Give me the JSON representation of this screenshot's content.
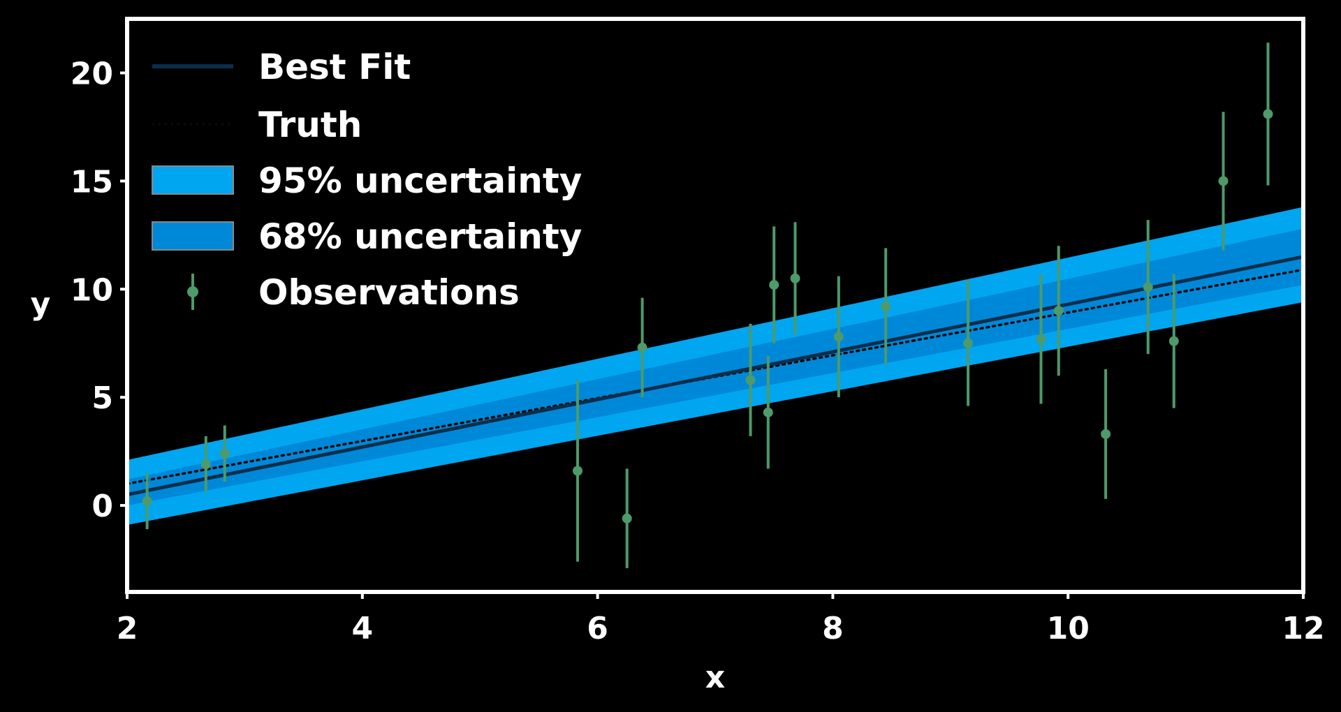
{
  "chart_data": {
    "type": "line",
    "xlabel": "x",
    "ylabel": "y",
    "xlim": [
      2,
      12
    ],
    "ylim": [
      -4,
      22.5
    ],
    "xticks": [
      2,
      4,
      6,
      8,
      10,
      12
    ],
    "yticks": [
      0,
      5,
      10,
      15,
      20
    ],
    "grid": false,
    "legend_position": "top-left",
    "colors": {
      "background": "#000000",
      "axes": "#ffffff",
      "best_fit": "#0b2e4a",
      "truth": "#0a0a0a",
      "band_95": "#00a6f0",
      "band_68": "#0088d8",
      "observations": "#4e9a6a"
    },
    "legend": [
      {
        "label": "Best Fit",
        "kind": "line"
      },
      {
        "label": "Truth",
        "kind": "dotted"
      },
      {
        "label": "95% uncertainty",
        "kind": "band95"
      },
      {
        "label": "68% uncertainty",
        "kind": "band68"
      },
      {
        "label": "Observations",
        "kind": "errorbar"
      }
    ],
    "best_fit": {
      "x": [
        2,
        12
      ],
      "y": [
        0.5,
        11.5
      ]
    },
    "truth": {
      "x": [
        2,
        12
      ],
      "y": [
        1.0,
        10.9
      ]
    },
    "band_95": {
      "x": [
        2,
        12
      ],
      "lower": [
        -0.9,
        9.4
      ],
      "upper": [
        2.1,
        13.8
      ]
    },
    "band_68": {
      "x": [
        2,
        12
      ],
      "lower": [
        0.0,
        10.2
      ],
      "upper": [
        1.2,
        12.8
      ]
    },
    "observations": [
      {
        "x": 2.17,
        "y": 0.2,
        "err": 1.3
      },
      {
        "x": 2.67,
        "y": 1.9,
        "err": 1.3
      },
      {
        "x": 2.83,
        "y": 2.4,
        "err": 1.3
      },
      {
        "x": 5.83,
        "y": 1.6,
        "err": 4.2
      },
      {
        "x": 6.25,
        "y": -0.6,
        "err": 2.3
      },
      {
        "x": 6.38,
        "y": 7.3,
        "err": 2.3
      },
      {
        "x": 7.3,
        "y": 5.8,
        "err": 2.6
      },
      {
        "x": 7.45,
        "y": 4.3,
        "err": 2.6
      },
      {
        "x": 7.5,
        "y": 10.2,
        "err": 2.7
      },
      {
        "x": 7.68,
        "y": 10.5,
        "err": 2.6
      },
      {
        "x": 8.05,
        "y": 7.8,
        "err": 2.8
      },
      {
        "x": 8.45,
        "y": 9.2,
        "err": 2.7
      },
      {
        "x": 9.15,
        "y": 7.5,
        "err": 2.9
      },
      {
        "x": 9.77,
        "y": 7.7,
        "err": 3.0
      },
      {
        "x": 9.92,
        "y": 9.0,
        "err": 3.0
      },
      {
        "x": 10.32,
        "y": 3.3,
        "err": 3.0
      },
      {
        "x": 10.68,
        "y": 10.1,
        "err": 3.1
      },
      {
        "x": 10.9,
        "y": 7.6,
        "err": 3.1
      },
      {
        "x": 11.32,
        "y": 15.0,
        "err": 3.2
      },
      {
        "x": 11.7,
        "y": 18.1,
        "err": 3.3
      }
    ]
  }
}
